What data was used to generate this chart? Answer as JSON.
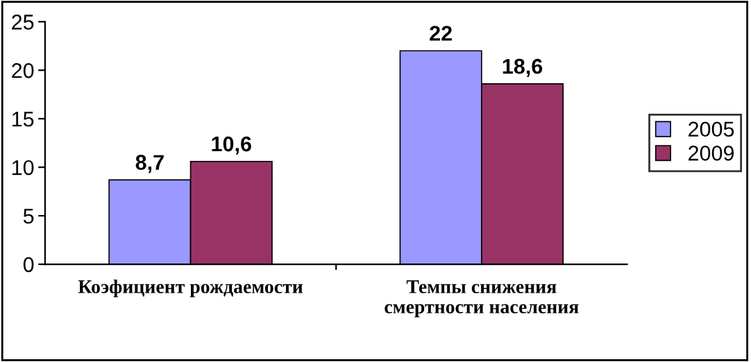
{
  "chart_data": {
    "type": "bar",
    "categories": [
      "Коэфициент рождаемости",
      "Темпы снижения\nсмертности населения"
    ],
    "series": [
      {
        "name": "2005",
        "color": "#9999ff",
        "values": [
          8.7,
          22
        ],
        "value_labels": [
          "8,7",
          "22"
        ]
      },
      {
        "name": "2009",
        "color": "#993366",
        "values": [
          10.6,
          18.6
        ],
        "value_labels": [
          "10,6",
          "18,6"
        ]
      }
    ],
    "ylim": [
      0,
      25
    ],
    "yticks": [
      0,
      5,
      10,
      15,
      20,
      25
    ],
    "grid": false,
    "legend": "right"
  }
}
